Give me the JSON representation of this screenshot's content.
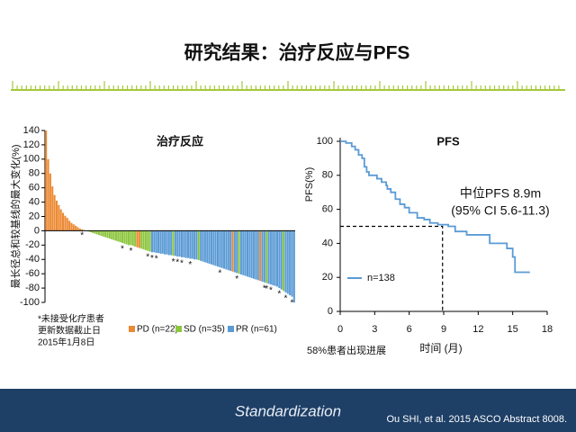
{
  "slide": {
    "title": "研究结果：治疗反应与PFS",
    "footnote_lines": [
      "*未接受化疗患者",
      "更新数据截止日",
      "2015年1月8日"
    ],
    "logo": "Standardization",
    "citation": "Ou SHI, et al. 2015 ASCO Abstract 8008."
  },
  "chart_data": [
    {
      "type": "bar",
      "title": "治疗反应",
      "y_label": "最长径总和较基线的最大变化(%)",
      "ylim": [
        -100,
        140
      ],
      "yticks": [
        140,
        120,
        100,
        80,
        60,
        40,
        20,
        0,
        -20,
        -40,
        -60,
        -80,
        -100
      ],
      "series": [
        {
          "name": "PD (n=22)",
          "color": "#ec8a34",
          "values": [
            140,
            100,
            80,
            62,
            50,
            42,
            36,
            30,
            25,
            21,
            18,
            14,
            11,
            9,
            7,
            5,
            3,
            2,
            null,
            null,
            null,
            null,
            null,
            null,
            null,
            null,
            null,
            null,
            null,
            null,
            null,
            null,
            null,
            null,
            null,
            null,
            null,
            null,
            null,
            null,
            null,
            null,
            null,
            -23,
            -24,
            null,
            null,
            null,
            null,
            null,
            null,
            null,
            null,
            null,
            null,
            null,
            null,
            null,
            null,
            null,
            null,
            null,
            null,
            null,
            null,
            null,
            null,
            null,
            null,
            null,
            null,
            null,
            null,
            null,
            null,
            null,
            null,
            null,
            null,
            null,
            null,
            null,
            null,
            null,
            null,
            null,
            null,
            null,
            -57,
            null,
            null,
            null,
            null,
            null,
            null,
            null,
            null,
            null,
            null,
            null,
            null,
            -70,
            null,
            null,
            null,
            null,
            null,
            null,
            null,
            null,
            null,
            null,
            null,
            null,
            null,
            null,
            null,
            null
          ]
        },
        {
          "name": "SD (n=35)",
          "color": "#8dc63f",
          "values": [
            null,
            null,
            null,
            null,
            null,
            null,
            null,
            null,
            null,
            null,
            null,
            null,
            null,
            null,
            null,
            null,
            null,
            null,
            1,
            0,
            -1,
            -2,
            -3,
            -4,
            -5,
            -6,
            -7,
            -8,
            -9,
            -10,
            -11,
            -12,
            -13,
            -14,
            -15,
            -16,
            -17,
            -18,
            -19,
            -20,
            -20,
            -21,
            -22,
            null,
            null,
            -25,
            -26,
            -27,
            -28,
            -29,
            null,
            null,
            null,
            null,
            null,
            null,
            null,
            null,
            null,
            null,
            -35,
            null,
            null,
            null,
            null,
            null,
            null,
            null,
            null,
            null,
            null,
            null,
            -41,
            null,
            null,
            null,
            null,
            null,
            null,
            null,
            null,
            null,
            null,
            null,
            null,
            null,
            null,
            null,
            null,
            null,
            null,
            -60,
            null,
            null,
            null,
            null,
            null,
            null,
            null,
            null,
            null,
            null,
            null,
            null,
            -73,
            null,
            null,
            null,
            null,
            null,
            null,
            null,
            -84,
            null,
            null,
            null,
            null,
            null
          ]
        },
        {
          "name": "PR (n=61)",
          "color": "#5b9bd5",
          "values": [
            null,
            null,
            null,
            null,
            null,
            null,
            null,
            null,
            null,
            null,
            null,
            null,
            null,
            null,
            null,
            null,
            null,
            null,
            null,
            null,
            null,
            null,
            null,
            null,
            null,
            null,
            null,
            null,
            null,
            null,
            null,
            null,
            null,
            null,
            null,
            null,
            null,
            null,
            null,
            null,
            null,
            null,
            null,
            null,
            null,
            null,
            null,
            null,
            null,
            null,
            -30,
            -30,
            -31,
            -31,
            -32,
            -32,
            -33,
            -33,
            -34,
            -34,
            null,
            -35,
            -36,
            -36,
            -37,
            -37,
            -38,
            -38,
            -39,
            -39,
            -40,
            -40,
            null,
            -42,
            -43,
            -44,
            -45,
            -46,
            -47,
            -48,
            -49,
            -50,
            -51,
            -52,
            -53,
            -54,
            -55,
            -56,
            null,
            -58,
            -59,
            null,
            -61,
            -62,
            -63,
            -64,
            -65,
            -66,
            -67,
            -68,
            -69,
            null,
            -71,
            -72,
            null,
            -74,
            -75,
            -76,
            -77,
            -78,
            -80,
            -82,
            null,
            -86,
            -88,
            -90,
            -92,
            -100
          ]
        }
      ],
      "annotations": [
        {
          "text": "*",
          "bar": 17
        },
        {
          "text": "*",
          "bar": 36
        },
        {
          "text": "*",
          "bar": 40
        },
        {
          "text": "*",
          "bar": 48
        },
        {
          "text": "*",
          "bar": 50
        },
        {
          "text": "*",
          "bar": 52
        },
        {
          "text": "*",
          "bar": 60
        },
        {
          "text": "*",
          "bar": 62
        },
        {
          "text": "*",
          "bar": 64
        },
        {
          "text": "*",
          "bar": 68
        },
        {
          "text": "*",
          "bar": 82
        },
        {
          "text": "*",
          "bar": 90
        },
        {
          "text": "*",
          "bar": 103
        },
        {
          "text": "*",
          "bar": 104
        },
        {
          "text": "*",
          "bar": 106
        },
        {
          "text": "*",
          "bar": 110
        },
        {
          "text": "*",
          "bar": 113
        },
        {
          "text": "*",
          "bar": 116
        }
      ]
    },
    {
      "type": "line",
      "drawstyle": "steps-post",
      "title": "PFS",
      "x_label": "时间 (月)",
      "y_label": "PFS(%)",
      "xlim": [
        0,
        18
      ],
      "xticks": [
        0,
        3,
        6,
        9,
        12,
        15,
        18
      ],
      "ylim": [
        0,
        100
      ],
      "yticks": [
        0,
        20,
        40,
        60,
        80,
        100
      ],
      "median_x": 8.9,
      "median_y": 50,
      "annotations": [
        "中位PFS 8.9m",
        "(95% CI 5.6-11.3)"
      ],
      "footnote": "58%患者出现进展",
      "series": [
        {
          "name": "n=138",
          "color": "#5b9bd5",
          "x": [
            0,
            0.5,
            1,
            1.3,
            1.6,
            1.9,
            2.1,
            2.3,
            2.5,
            3.2,
            3.6,
            4,
            4.1,
            4.4,
            4.8,
            5.2,
            5.6,
            6,
            6.7,
            7.3,
            7.8,
            8.5,
            9.4,
            10,
            11,
            13,
            14.5,
            15,
            15.2,
            16.5
          ],
          "values": [
            100,
            99,
            97,
            95,
            92,
            90,
            85,
            82,
            80,
            78,
            76,
            74,
            72,
            70,
            66,
            63,
            61,
            58,
            55,
            54,
            52,
            51,
            50,
            47,
            45,
            40,
            37,
            32,
            23,
            23
          ]
        }
      ]
    }
  ]
}
